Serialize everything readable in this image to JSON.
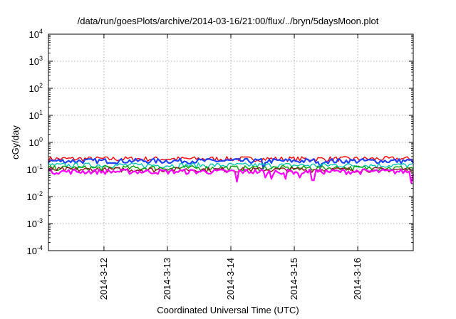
{
  "chart_data": {
    "type": "line",
    "title": "/data/run/goesPlots/archive/2014-03-16/21:00/flux/../bryn/5daysMoon.plot",
    "xlabel": "Coordinated Universal Time (UTC)",
    "ylabel": "cGy/day",
    "y_scale": "log",
    "ylim": [
      0.0001,
      10000
    ],
    "y_ticks": [
      {
        "value": 0.0001,
        "base": "10",
        "exp": "-4"
      },
      {
        "value": 0.001,
        "base": "10",
        "exp": "-3"
      },
      {
        "value": 0.01,
        "base": "10",
        "exp": "-2"
      },
      {
        "value": 0.1,
        "base": "10",
        "exp": "-1"
      },
      {
        "value": 1,
        "base": "10",
        "exp": "0"
      },
      {
        "value": 10,
        "base": "10",
        "exp": "1"
      },
      {
        "value": 100,
        "base": "10",
        "exp": "2"
      },
      {
        "value": 1000,
        "base": "10",
        "exp": "3"
      },
      {
        "value": 10000,
        "base": "10",
        "exp": "4"
      }
    ],
    "xlim": [
      "2014-03-11 03:00",
      "2014-03-16 21:00"
    ],
    "x_ticks": [
      "2014-3-12",
      "2014-3-13",
      "2014-3-14",
      "2014-3-15",
      "2014-3-16"
    ],
    "grid": true,
    "legend": "none",
    "series": [
      {
        "color": "#ff0000",
        "base": 0.25,
        "dips": []
      },
      {
        "color": "#1e40ff",
        "base": 0.21,
        "dips": [
          {
            "t": "2014-03-14 12:30",
            "v": 0.11
          },
          {
            "t": "2014-03-15 10:00",
            "v": 0.13
          }
        ]
      },
      {
        "color": "#00c8b4",
        "base": 0.145,
        "dips": []
      },
      {
        "color": "#00a000",
        "base": 0.115,
        "dips": []
      },
      {
        "color": "#8b1a1a",
        "base": 0.1,
        "dips": []
      },
      {
        "color": "#ff00ff",
        "base": 0.085,
        "dips": [
          {
            "t": "2014-03-14 02:30",
            "v": 0.035
          },
          {
            "t": "2014-03-14 13:00",
            "v": 0.05
          },
          {
            "t": "2014-03-14 15:30",
            "v": 0.045
          },
          {
            "t": "2014-03-14 21:00",
            "v": 0.045
          },
          {
            "t": "2014-03-15 02:00",
            "v": 0.05
          },
          {
            "t": "2014-03-15 07:00",
            "v": 0.04
          },
          {
            "t": "2014-03-16 20:00",
            "v": 0.032
          }
        ]
      }
    ]
  }
}
